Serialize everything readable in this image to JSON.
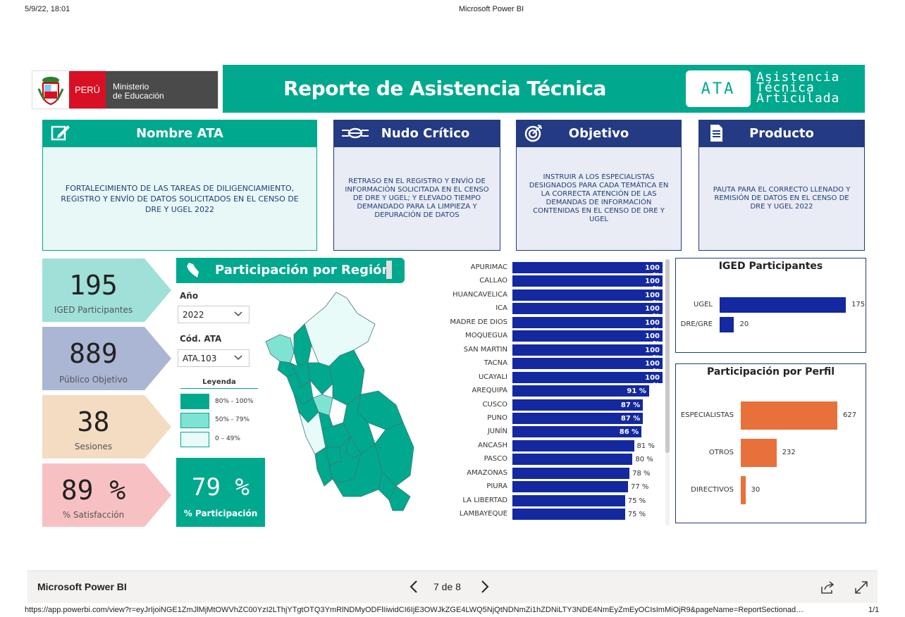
{
  "print_header": {
    "datetime": "5/9/22, 18:01",
    "title": "Microsoft Power BI"
  },
  "logo": {
    "country": "PERÚ",
    "ministry_line1": "Ministerio",
    "ministry_line2": "de Educación"
  },
  "banner": {
    "title": "Reporte de Asistencia Técnica",
    "ata_badge": "ATA",
    "ata_line1": "Asistencia",
    "ata_line2": "Técnica",
    "ata_line3": "Articulada"
  },
  "cards": [
    {
      "title": "Nombre ATA",
      "icon": "edit-icon",
      "text": "FORTALECIMIENTO DE LAS TAREAS DE DILIGENCIAMIENTO, REGISTRO Y ENVÍO DE DATOS SOLICITADOS EN EL CENSO DE DRE Y UGEL 2022"
    },
    {
      "title": "Nudo Crítico",
      "icon": "knot-icon",
      "text": "RETRASO EN EL REGISTRO Y ENVÍO DE INFORMACIÓN SOLICITADA EN EL CENSO DE DRE Y UGEL; Y ELEVADO TIEMPO DEMANDADO PARA LA LIMPIEZA Y DEPURACIÓN DE DATOS"
    },
    {
      "title": "Objetivo",
      "icon": "target-icon",
      "text": "INSTRUIR A LOS ESPECIALISTAS DESIGNADOS PARA CADA TEMÁTICA EN LA CORRECTA ATENCIÓN DE LAS DEMANDAS DE INFORMACIÓN CONTENIDAS EN EL CENSO DE DRE Y UGEL"
    },
    {
      "title": "Producto",
      "icon": "document-icon",
      "text": "PAUTA PARA EL CORRECTO LLENADO Y REMISIÓN DE DATOS EN EL CENSO DE DRE Y UGEL 2022"
    }
  ],
  "kpis": [
    {
      "value": "195",
      "label": "IGED Participantes",
      "color": "#9fe0d8"
    },
    {
      "value": "889",
      "label": "Público Objetivo",
      "color": "#aab6d3"
    },
    {
      "value": "38",
      "label": "Sesiones",
      "color": "#f3dcc2"
    },
    {
      "value": "89 %",
      "label": "% Satisfacción",
      "color": "#f7c1c3"
    }
  ],
  "region": {
    "title": "Participación por Región",
    "year_label": "Año",
    "year_value": "2022",
    "code_label": "Cód. ATA",
    "code_value": "ATA.103",
    "legend_title": "Leyenda",
    "legend": [
      {
        "label": "80% - 100%",
        "color": "#00a88e"
      },
      {
        "label": "50% - 79%",
        "color": "#7fe3d3"
      },
      {
        "label": "0 – 49%",
        "color": "#e8fbf8"
      }
    ],
    "participation_value": "79 %",
    "participation_label": "% Participación"
  },
  "chart_data": [
    {
      "type": "bar",
      "orientation": "horizontal",
      "categories": [
        "APURIMAC",
        "CALLAO",
        "HUANCAVELICA",
        "ICA",
        "MADRE DE DIOS",
        "MOQUEGUA",
        "SAN MARTIN",
        "TACNA",
        "UCAYALI",
        "AREQUIPA",
        "CUSCO",
        "PUNO",
        "JUNÍN",
        "ANCASH",
        "PASCO",
        "AMAZONAS",
        "PIURA",
        "LA LIBERTAD",
        "LAMBAYEQUE"
      ],
      "values": [
        100,
        100,
        100,
        100,
        100,
        100,
        100,
        100,
        100,
        91,
        87,
        87,
        86,
        81,
        80,
        78,
        77,
        75,
        75
      ],
      "labels": [
        "100 %",
        "100 %",
        "100 %",
        "100 %",
        "100 %",
        "100 %",
        "100 %",
        "100 %",
        "100 %",
        "91 %",
        "87 %",
        "87 %",
        "86 %",
        "81 %",
        "80 %",
        "78 %",
        "77 %",
        "75 %",
        "75 %"
      ],
      "color": "#1428a0",
      "xlim": [
        0,
        100
      ]
    },
    {
      "type": "bar",
      "orientation": "horizontal",
      "title": "IGED Participantes",
      "categories": [
        "UGEL",
        "DRE/GRE"
      ],
      "values": [
        175,
        20
      ],
      "color": "#1428a0"
    },
    {
      "type": "bar",
      "orientation": "horizontal",
      "title": "Participación por Perfil",
      "categories": [
        "ESPECIALISTAS",
        "OTROS",
        "DIRECTIVOS"
      ],
      "values": [
        627,
        232,
        30
      ],
      "color": "#e8703a"
    }
  ],
  "footer": {
    "brand": "Microsoft Power BI",
    "page_indicator": "7 de 8",
    "url": "https://app.powerbi.com/view?r=eyJrIjoiNGE1ZmJlMjMtOWVhZC00YzI2LThjYTgtOTQ3YmRlNDMyODFlIiwidCI6IjE3OWJkZGE4LWQ5NjQtNDNmZi1hZDNiLTY3NDE4NmEyZmEyOCIsImMiOjR9&pageName=ReportSectionad…",
    "page_count": "1/1"
  }
}
